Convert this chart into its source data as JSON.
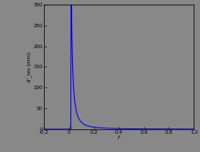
{
  "background_color": "#888888",
  "plot_bg_color": "#888888",
  "line_color": "#0000ff",
  "xlim": [
    -0.2,
    1.0
  ],
  "ylim": [
    0,
    300
  ],
  "xticks": [
    -0.2,
    0.0,
    0.2,
    0.4,
    0.6,
    0.8,
    1.0
  ],
  "yticks": [
    0,
    50,
    100,
    150,
    200,
    250,
    300
  ],
  "xtick_labels": [
    "-0.2",
    "0",
    "0.2",
    "0.4",
    "0.6",
    "0.8",
    "1.0"
  ],
  "ytick_labels": [
    "0",
    "50",
    "100",
    "150",
    "200",
    "250",
    "300"
  ],
  "xlabel": "r",
  "ylabel": "d'_res (mm)",
  "line_width": 0.7
}
